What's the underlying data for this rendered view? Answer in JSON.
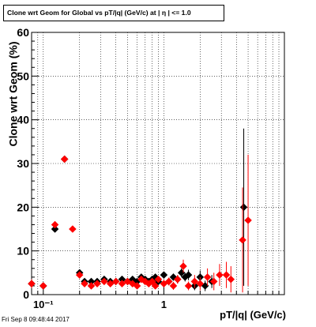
{
  "canvas": {
    "title": "Clone wrt Geom for Global vs pT/|q| (GeV/c) at |  η | <= 1.0",
    "date": "Fri Sep  8 09:48:44 2017"
  },
  "chart_data": {
    "type": "scatter",
    "title": "Clone wrt Geom for Global vs pT/|q| (GeV/c) at |  η | <= 1.0",
    "xlabel": "pT/|q| (GeV/c)",
    "ylabel": "Clone wrt Geom (%)",
    "xscale": "log",
    "xlim": [
      0.08,
      10
    ],
    "ylim": [
      0,
      60
    ],
    "grid": true,
    "x_ticks": [
      {
        "v": 0.1,
        "label": "10⁻¹"
      },
      {
        "v": 1,
        "label": "1"
      }
    ],
    "y_ticks": [
      0,
      10,
      20,
      30,
      40,
      50,
      60
    ],
    "series": [
      {
        "color": "#000000",
        "points": [
          {
            "x": 0.08,
            "y": 2.5,
            "ey": 0.8
          },
          {
            "x": 0.1,
            "y": 2.0,
            "ey": 0
          },
          {
            "x": 0.125,
            "y": 15.0,
            "ey": 0.5
          },
          {
            "x": 0.15,
            "y": 31.0,
            "ey": 0.6
          },
          {
            "x": 0.2,
            "y": 5.0,
            "ey": 0.5
          },
          {
            "x": 0.22,
            "y": 3.0,
            "ey": 0.4
          },
          {
            "x": 0.25,
            "y": 3.0,
            "ey": 0.4
          },
          {
            "x": 0.28,
            "y": 3.0,
            "ey": 0.4
          },
          {
            "x": 0.32,
            "y": 3.5,
            "ey": 0.4
          },
          {
            "x": 0.36,
            "y": 3.0,
            "ey": 0.4
          },
          {
            "x": 0.4,
            "y": 3.0,
            "ey": 0.4
          },
          {
            "x": 0.45,
            "y": 3.5,
            "ey": 0.4
          },
          {
            "x": 0.5,
            "y": 3.0,
            "ey": 0.5
          },
          {
            "x": 0.55,
            "y": 3.5,
            "ey": 0.5
          },
          {
            "x": 0.6,
            "y": 3.0,
            "ey": 0.5
          },
          {
            "x": 0.65,
            "y": 4.0,
            "ey": 0.5
          },
          {
            "x": 0.7,
            "y": 3.5,
            "ey": 0.5
          },
          {
            "x": 0.75,
            "y": 3.0,
            "ey": 0.6
          },
          {
            "x": 0.8,
            "y": 3.5,
            "ey": 0.6
          },
          {
            "x": 0.85,
            "y": 4.0,
            "ey": 0.6
          },
          {
            "x": 0.9,
            "y": 3.0,
            "ey": 0.7
          },
          {
            "x": 1.0,
            "y": 4.5,
            "ey": 0.7
          },
          {
            "x": 1.1,
            "y": 3.0,
            "ey": 0.8
          },
          {
            "x": 1.2,
            "y": 4.0,
            "ey": 0.8
          },
          {
            "x": 1.3,
            "y": 3.5,
            "ey": 0.9
          },
          {
            "x": 1.4,
            "y": 5.0,
            "ey": 1.0
          },
          {
            "x": 1.5,
            "y": 4.0,
            "ey": 1.0
          },
          {
            "x": 1.6,
            "y": 4.5,
            "ey": 1.2
          },
          {
            "x": 1.8,
            "y": 2.0,
            "ey": 1.0
          },
          {
            "x": 2.0,
            "y": 4.0,
            "ey": 1.5
          },
          {
            "x": 2.2,
            "y": 2.0,
            "ey": 1.2
          },
          {
            "x": 2.5,
            "y": 3.0,
            "ey": 1.5
          },
          {
            "x": 4.6,
            "y": 20.0,
            "ey": 18.0
          }
        ]
      },
      {
        "color": "#ff0000",
        "points": [
          {
            "x": 0.08,
            "y": 2.5,
            "ey": 1.0
          },
          {
            "x": 0.1,
            "y": 2.0,
            "ey": 0.3
          },
          {
            "x": 0.125,
            "y": 16.0,
            "ey": 0.6
          },
          {
            "x": 0.15,
            "y": 31.0,
            "ey": 0.7
          },
          {
            "x": 0.175,
            "y": 15.0,
            "ey": 0.5
          },
          {
            "x": 0.2,
            "y": 4.5,
            "ey": 0.5
          },
          {
            "x": 0.22,
            "y": 2.5,
            "ey": 0.4
          },
          {
            "x": 0.25,
            "y": 2.0,
            "ey": 0.4
          },
          {
            "x": 0.28,
            "y": 2.5,
            "ey": 0.4
          },
          {
            "x": 0.32,
            "y": 3.0,
            "ey": 0.4
          },
          {
            "x": 0.36,
            "y": 2.5,
            "ey": 0.4
          },
          {
            "x": 0.4,
            "y": 3.0,
            "ey": 0.4
          },
          {
            "x": 0.45,
            "y": 2.5,
            "ey": 0.5
          },
          {
            "x": 0.5,
            "y": 3.0,
            "ey": 0.5
          },
          {
            "x": 0.55,
            "y": 2.5,
            "ey": 0.5
          },
          {
            "x": 0.6,
            "y": 2.0,
            "ey": 0.5
          },
          {
            "x": 0.65,
            "y": 3.5,
            "ey": 0.6
          },
          {
            "x": 0.7,
            "y": 3.0,
            "ey": 0.6
          },
          {
            "x": 0.75,
            "y": 2.5,
            "ey": 0.6
          },
          {
            "x": 0.8,
            "y": 3.0,
            "ey": 0.7
          },
          {
            "x": 0.85,
            "y": 2.0,
            "ey": 0.7
          },
          {
            "x": 0.9,
            "y": 3.5,
            "ey": 0.7
          },
          {
            "x": 1.0,
            "y": 2.5,
            "ey": 0.8
          },
          {
            "x": 1.1,
            "y": 3.0,
            "ey": 0.9
          },
          {
            "x": 1.2,
            "y": 2.0,
            "ey": 0.9
          },
          {
            "x": 1.3,
            "y": 3.5,
            "ey": 1.0
          },
          {
            "x": 1.45,
            "y": 6.5,
            "ey": 1.5
          },
          {
            "x": 1.6,
            "y": 2.0,
            "ey": 1.0
          },
          {
            "x": 1.8,
            "y": 3.0,
            "ey": 1.5
          },
          {
            "x": 2.0,
            "y": 2.5,
            "ey": 1.5
          },
          {
            "x": 2.3,
            "y": 4.0,
            "ey": 2.0
          },
          {
            "x": 2.6,
            "y": 3.0,
            "ey": 2.0
          },
          {
            "x": 2.9,
            "y": 4.5,
            "ey": 2.5
          },
          {
            "x": 3.3,
            "y": 4.5,
            "ey": 3.0
          },
          {
            "x": 3.6,
            "y": 3.5,
            "ey": 3.0
          },
          {
            "x": 4.5,
            "y": 12.5,
            "ey": 12.0
          },
          {
            "x": 5.0,
            "y": 17.0,
            "ey": 15.0
          }
        ]
      }
    ]
  }
}
